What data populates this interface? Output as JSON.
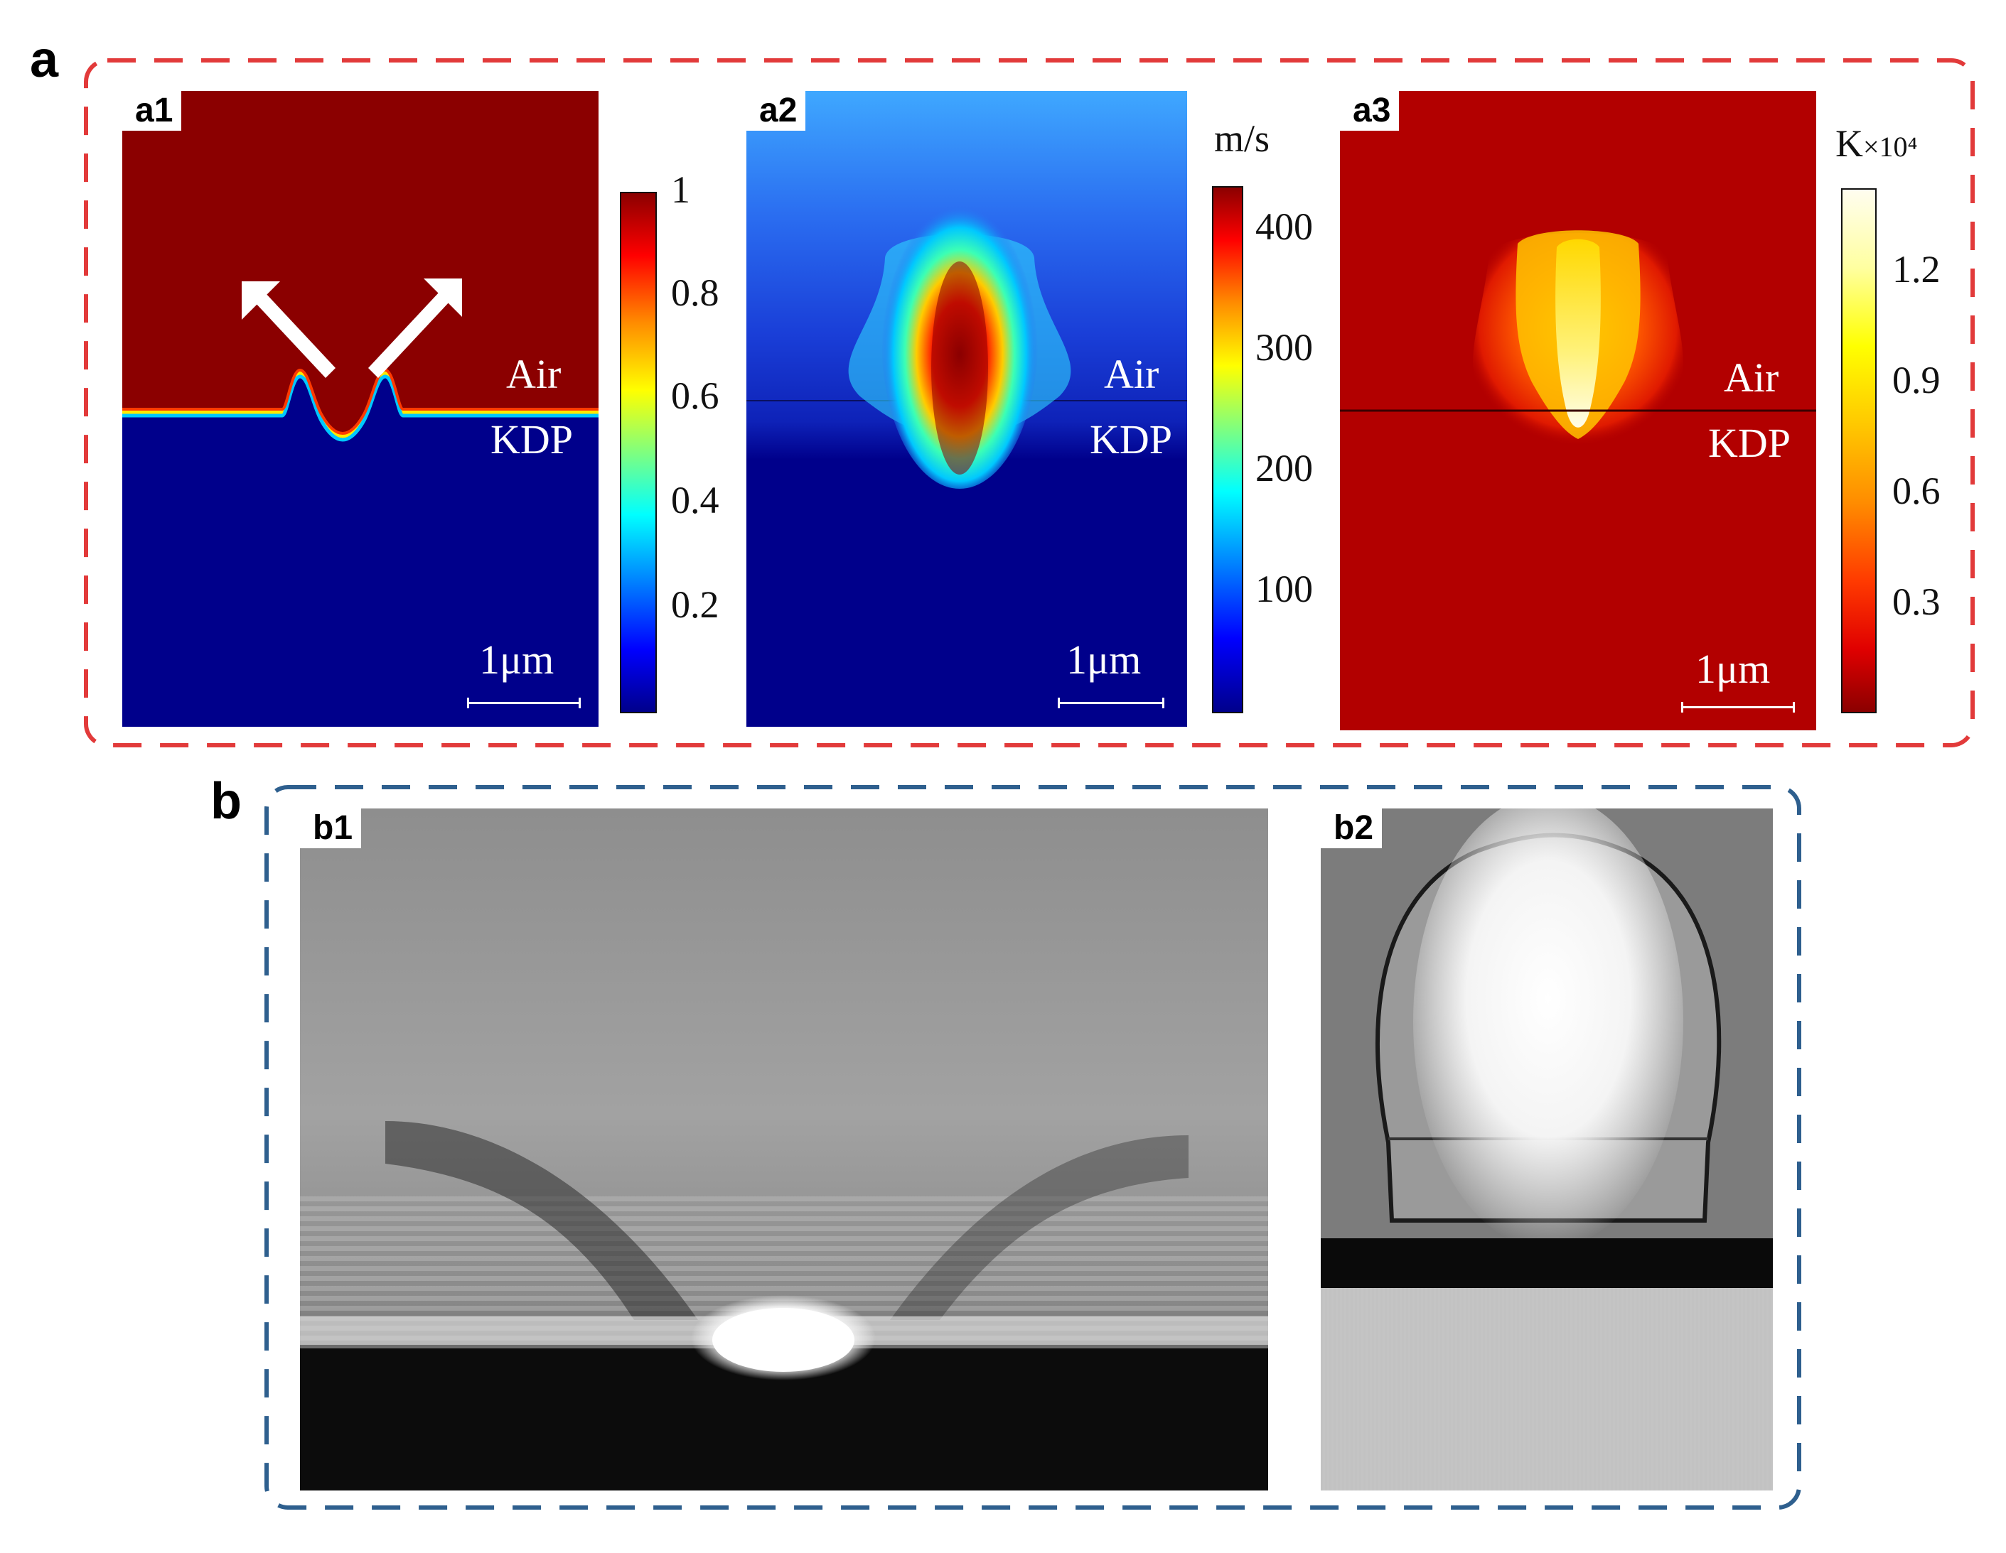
{
  "figure": {
    "section_a": {
      "label": "a",
      "frame_color": "#e23a3a"
    },
    "section_b": {
      "label": "b",
      "frame_color": "#2e5f8e"
    },
    "panels": {
      "a1": {
        "tag": "a1",
        "top_label": "Air",
        "bottom_label": "KDP",
        "scale_label": "1μm",
        "colorbar": {
          "unit": "",
          "ticks": [
            "1",
            "0.8",
            "0.6",
            "0.4",
            "0.2"
          ],
          "colormap": "jet"
        }
      },
      "a2": {
        "tag": "a2",
        "top_label": "Air",
        "bottom_label": "KDP",
        "scale_label": "1μm",
        "colorbar": {
          "unit": "m/s",
          "ticks": [
            "400",
            "300",
            "200",
            "100"
          ],
          "colormap": "jet"
        }
      },
      "a3": {
        "tag": "a3",
        "top_label": "Air",
        "bottom_label": "KDP",
        "scale_label": "1μm",
        "colorbar": {
          "unit": "K",
          "multiplier": "×10⁴",
          "ticks": [
            "1.2",
            "0.9",
            "0.6",
            "0.3"
          ],
          "colormap": "hot"
        }
      },
      "b1": {
        "tag": "b1"
      },
      "b2": {
        "tag": "b2"
      }
    }
  }
}
